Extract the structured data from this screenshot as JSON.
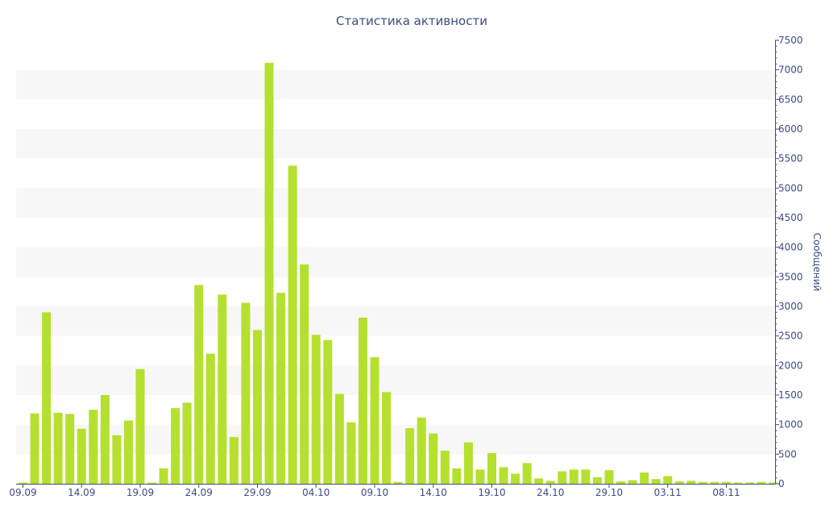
{
  "chart_data": {
    "type": "bar",
    "title": "Статистика активности",
    "ylabel": "Сообщений",
    "xlabel": "",
    "ylim": [
      0,
      7500
    ],
    "y_ticks": [
      0,
      500,
      1000,
      1500,
      2000,
      2500,
      3000,
      3500,
      4000,
      4500,
      5000,
      5500,
      6000,
      6500,
      7000,
      7500
    ],
    "x_tick_labels": [
      {
        "label": "09.09",
        "index": 0
      },
      {
        "label": "14.09",
        "index": 5
      },
      {
        "label": "19.09",
        "index": 10
      },
      {
        "label": "24.09",
        "index": 15
      },
      {
        "label": "29.09",
        "index": 20
      },
      {
        "label": "04.10",
        "index": 25
      },
      {
        "label": "09.10",
        "index": 30
      },
      {
        "label": "14.10",
        "index": 35
      },
      {
        "label": "19.10",
        "index": 40
      },
      {
        "label": "24.10",
        "index": 45
      },
      {
        "label": "29.10",
        "index": 50
      },
      {
        "label": "03.11",
        "index": 55
      },
      {
        "label": "08.11",
        "index": 60
      }
    ],
    "grid": "alternating horizontal bands",
    "bar_color": "#b5e02f",
    "band_color": "#f7f7f7",
    "axis_color": "#3e4c80",
    "y_axis_side": "right",
    "values": [
      20,
      1190,
      2900,
      1200,
      1180,
      930,
      1250,
      1500,
      820,
      1070,
      1940,
      20,
      260,
      1280,
      1370,
      3360,
      2200,
      3200,
      790,
      3060,
      2600,
      7120,
      3230,
      5380,
      3710,
      2520,
      2430,
      1520,
      1040,
      2810,
      2140,
      1550,
      30,
      940,
      1120,
      850,
      560,
      260,
      700,
      240,
      520,
      280,
      170,
      350,
      90,
      50,
      210,
      240,
      240,
      110,
      230,
      40,
      60,
      190,
      80,
      130,
      40,
      50,
      30,
      30,
      30,
      20,
      20,
      30,
      20
    ]
  }
}
